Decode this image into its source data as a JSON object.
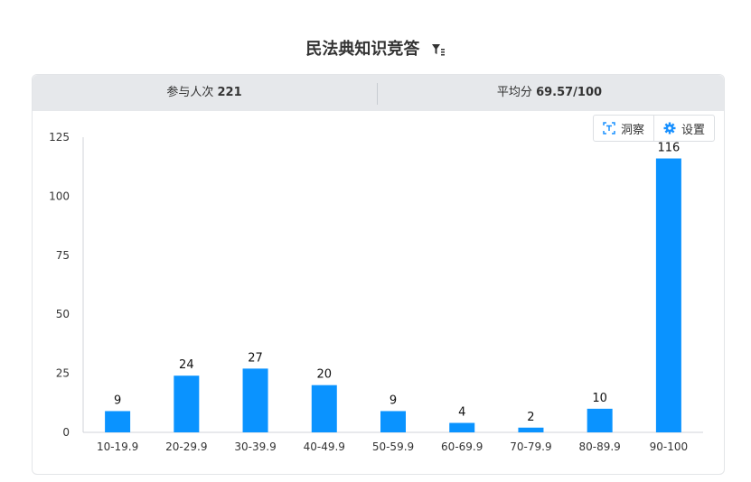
{
  "header": {
    "title": "民法典知识竞答"
  },
  "stats": {
    "participants_label": "参与人次",
    "participants_value": "221",
    "average_label": "平均分",
    "average_value": "69.57/100"
  },
  "toolbar": {
    "insight_label": "洞察",
    "settings_label": "设置"
  },
  "colors": {
    "bar": "#0a93ff",
    "accent": "#1890ff"
  },
  "chart_data": {
    "type": "bar",
    "categories": [
      "10-19.9",
      "20-29.9",
      "30-39.9",
      "40-49.9",
      "50-59.9",
      "60-69.9",
      "70-79.9",
      "80-89.9",
      "90-100"
    ],
    "values": [
      9,
      24,
      27,
      20,
      9,
      4,
      2,
      10,
      116
    ],
    "ylim": [
      0,
      125
    ],
    "yticks": [
      0,
      25,
      50,
      75,
      100,
      125
    ],
    "grid": false,
    "title": "",
    "xlabel": "",
    "ylabel": ""
  }
}
